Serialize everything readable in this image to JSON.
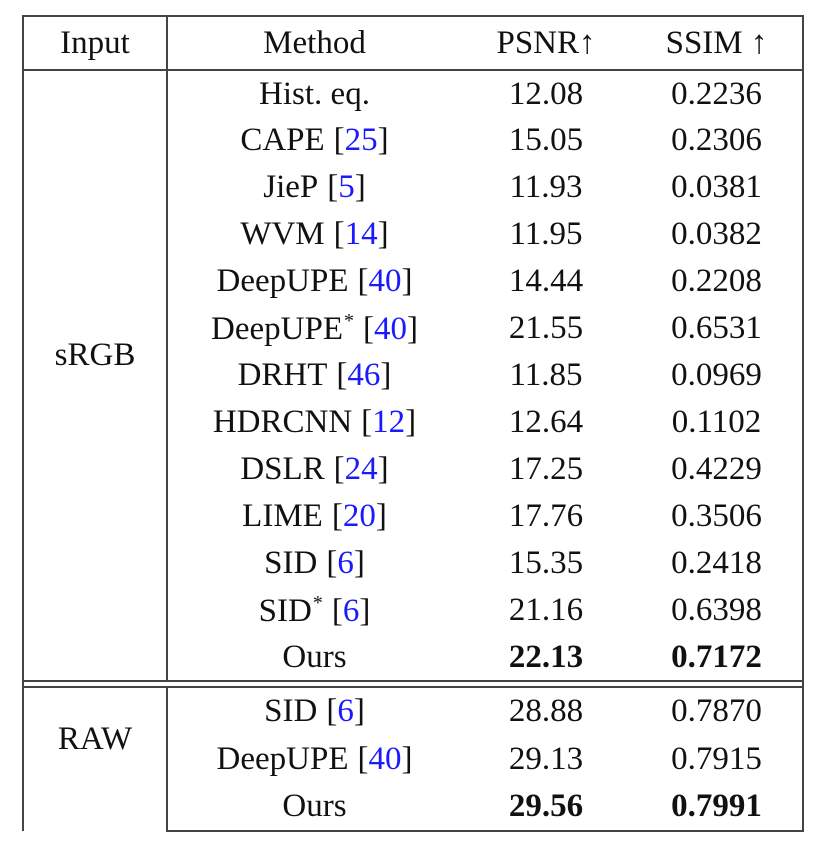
{
  "header": {
    "columns": [
      "Input",
      "Method",
      "PSNR↑",
      "SSIM ↑"
    ]
  },
  "groups": [
    {
      "input": "sRGB",
      "rows": [
        {
          "method": "Hist. eq.",
          "psnr": "12.08",
          "ssim": "0.2236"
        },
        {
          "method": "CAPE",
          "cite": "[25]",
          "psnr": "15.05",
          "ssim": "0.2306"
        },
        {
          "method": "JieP",
          "cite": "[5]",
          "psnr": "11.93",
          "ssim": "0.0381"
        },
        {
          "method": "WVM",
          "cite": "[14]",
          "psnr": "11.95",
          "ssim": "0.0382"
        },
        {
          "method": "DeepUPE",
          "cite": "[40]",
          "psnr": "14.44",
          "ssim": "0.2208"
        },
        {
          "method": "DeepUPE",
          "sup": "*",
          "cite": "[40]",
          "psnr": "21.55",
          "ssim": "0.6531"
        },
        {
          "method": "DRHT",
          "cite": "[46]",
          "psnr": "11.85",
          "ssim": "0.0969"
        },
        {
          "method": "HDRCNN",
          "cite": "[12]",
          "psnr": "12.64",
          "ssim": "0.1102"
        },
        {
          "method": "DSLR",
          "cite": "[24]",
          "psnr": "17.25",
          "ssim": "0.4229"
        },
        {
          "method": "LIME",
          "cite": "[20]",
          "psnr": "17.76",
          "ssim": "0.3506"
        },
        {
          "method": "SID",
          "cite": "[6]",
          "psnr": "15.35",
          "ssim": "0.2418"
        },
        {
          "method": "SID",
          "sup": "*",
          "cite": "[6]",
          "psnr": "21.16",
          "ssim": "0.6398"
        },
        {
          "method": "Ours",
          "psnr": "22.13",
          "ssim": "0.7172",
          "best": true
        }
      ]
    },
    {
      "input": "RAW",
      "rows": [
        {
          "method": "SID",
          "cite": "[6]",
          "psnr": "28.88",
          "ssim": "0.7870"
        },
        {
          "method": "DeepUPE",
          "cite": "[40]",
          "psnr": "29.13",
          "ssim": "0.7915"
        },
        {
          "method": "Ours",
          "psnr": "29.56",
          "ssim": "0.7991",
          "best": true
        }
      ]
    }
  ]
}
